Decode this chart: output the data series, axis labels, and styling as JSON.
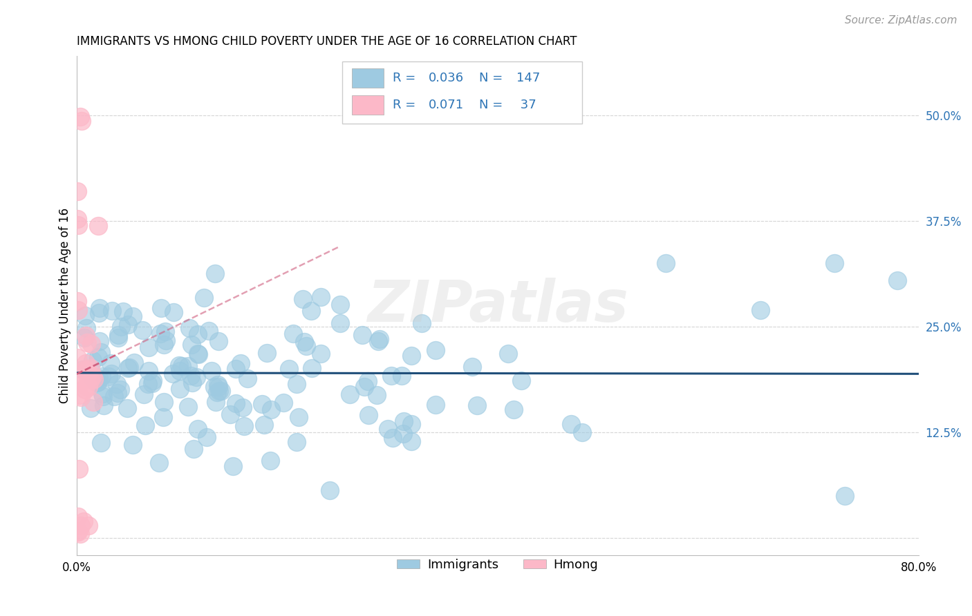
{
  "title": "IMMIGRANTS VS HMONG CHILD POVERTY UNDER THE AGE OF 16 CORRELATION CHART",
  "source": "Source: ZipAtlas.com",
  "ylabel": "Child Poverty Under the Age of 16",
  "xlim": [
    0.0,
    0.8
  ],
  "ylim": [
    -0.02,
    0.57
  ],
  "immigrants_R": "0.036",
  "immigrants_N": "147",
  "hmong_R": "0.071",
  "hmong_N": "37",
  "blue_scatter_color": "#9ecae1",
  "pink_scatter_color": "#fcb8c8",
  "blue_line_color": "#1f4e79",
  "pink_line_color": "#d06080",
  "label_color": "#2e75b6",
  "grid_color": "#d8d8d8",
  "watermark": "ZIPatlas",
  "title_fontsize": 12,
  "source_fontsize": 11,
  "tick_fontsize": 12,
  "legend_fontsize": 13
}
